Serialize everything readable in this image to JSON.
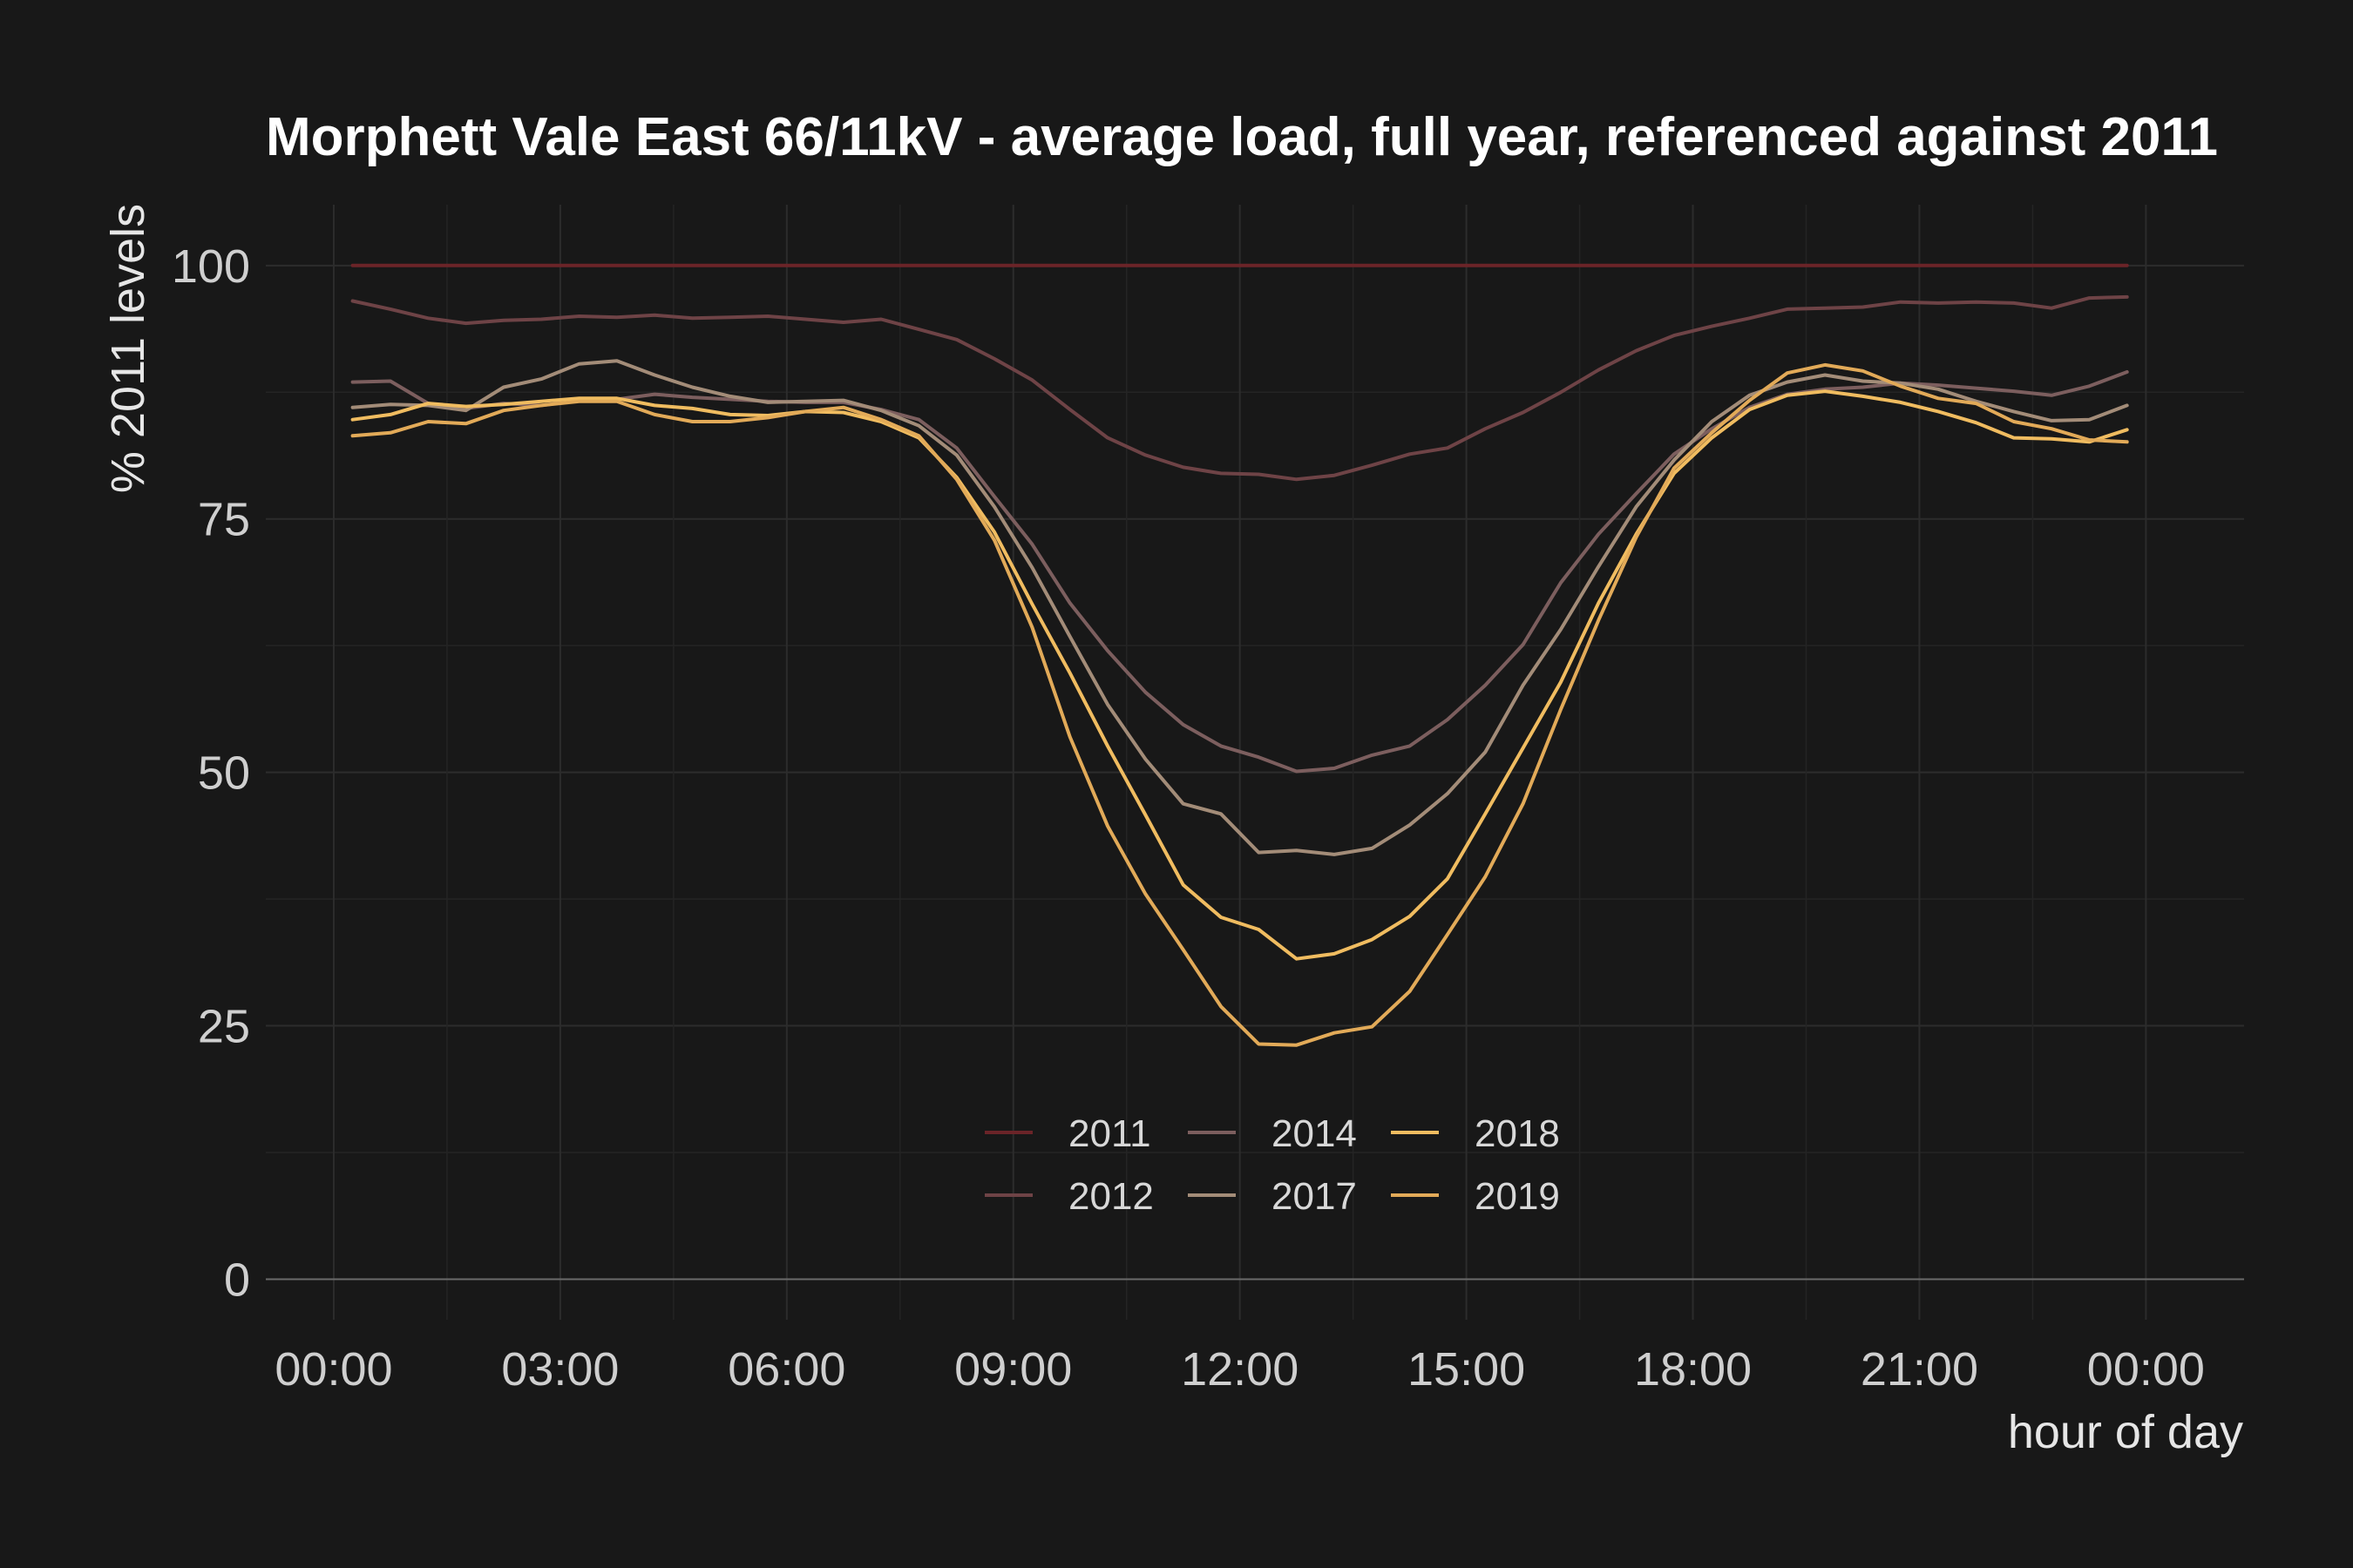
{
  "chart_data": {
    "type": "line",
    "title": "Morphett Vale East 66/11kV - average load, full year, referenced against 2011",
    "xlabel": "hour of day",
    "ylabel": "% 2011 levels",
    "x_tick_labels": [
      "00:00",
      "03:00",
      "06:00",
      "09:00",
      "12:00",
      "15:00",
      "18:00",
      "21:00",
      "00:00"
    ],
    "x_ticks": [
      0,
      3,
      6,
      9,
      12,
      15,
      18,
      21,
      24
    ],
    "y_ticks": [
      0,
      25,
      50,
      75,
      100
    ],
    "xlim": [
      -0.9,
      25.3
    ],
    "ylim": [
      -4,
      106
    ],
    "grid": true,
    "legend_position": "bottom-center",
    "x": [
      0.25,
      0.75,
      1.25,
      1.75,
      2.25,
      2.75,
      3.25,
      3.75,
      4.25,
      4.75,
      5.25,
      5.75,
      6.25,
      6.75,
      7.25,
      7.75,
      8.25,
      8.75,
      9.25,
      9.75,
      10.25,
      10.75,
      11.25,
      11.75,
      12.25,
      12.75,
      13.25,
      13.75,
      14.25,
      14.75,
      15.25,
      15.75,
      16.25,
      16.75,
      17.25,
      17.75,
      18.25,
      18.75,
      19.25,
      19.75,
      20.25,
      20.75,
      21.25,
      21.75,
      22.25,
      22.75,
      23.25,
      23.75
    ],
    "series": [
      {
        "name": "2011",
        "color": "#6b2428",
        "values": [
          100,
          100,
          100,
          100,
          100,
          100,
          100,
          100,
          100,
          100,
          100,
          100,
          100,
          100,
          100,
          100,
          100,
          100,
          100,
          100,
          100,
          100,
          100,
          100,
          100,
          100,
          100,
          100,
          100,
          100,
          100,
          100,
          100,
          100,
          100,
          100,
          100,
          100,
          100,
          100,
          100,
          100,
          100,
          100,
          100,
          100,
          100,
          100
        ]
      },
      {
        "name": "2012",
        "color": "#6e4346",
        "values": [
          96.5,
          95.7,
          94.8,
          94.3,
          94.6,
          94.7,
          95.0,
          94.9,
          95.1,
          94.8,
          94.9,
          95.0,
          94.7,
          94.4,
          94.7,
          93.7,
          92.7,
          90.8,
          88.7,
          85.8,
          83.0,
          81.3,
          80.1,
          79.5,
          79.4,
          78.9,
          79.3,
          80.3,
          81.4,
          82.0,
          83.9,
          85.5,
          87.5,
          89.7,
          91.6,
          93.1,
          94.0,
          94.8,
          95.7,
          95.8,
          95.9,
          96.4,
          96.3,
          96.4,
          96.3,
          95.8,
          96.8,
          96.9
        ]
      },
      {
        "name": "2014",
        "color": "#7c5e5e",
        "values": [
          88.5,
          88.6,
          86.4,
          85.9,
          86.4,
          86.2,
          86.7,
          86.8,
          87.3,
          87.0,
          86.8,
          86.6,
          86.5,
          86.5,
          85.8,
          84.8,
          82.0,
          77.2,
          72.5,
          66.7,
          62.0,
          57.9,
          54.7,
          52.6,
          51.5,
          50.1,
          50.4,
          51.7,
          52.6,
          55.2,
          58.6,
          62.6,
          68.7,
          73.5,
          77.5,
          81.4,
          83.9,
          86.0,
          87.3,
          87.8,
          88.0,
          88.4,
          88.2,
          87.9,
          87.6,
          87.2,
          88.1,
          89.5
        ]
      },
      {
        "name": "2017",
        "color": "#a38c78",
        "values": [
          86.0,
          86.3,
          86.2,
          85.7,
          88.0,
          88.8,
          90.3,
          90.6,
          89.2,
          88.0,
          87.1,
          86.5,
          86.6,
          86.7,
          85.7,
          84.2,
          81.3,
          76.2,
          70.2,
          63.4,
          56.7,
          51.3,
          46.9,
          45.9,
          42.1,
          42.3,
          41.9,
          42.5,
          44.8,
          47.9,
          52.0,
          58.6,
          64.1,
          70.3,
          76.2,
          80.8,
          84.6,
          87.2,
          88.5,
          89.2,
          88.6,
          88.4,
          87.8,
          86.6,
          85.6,
          84.7,
          84.8,
          86.2
        ]
      },
      {
        "name": "2018",
        "color": "#f0bc60",
        "values": [
          84.8,
          85.3,
          86.4,
          86.1,
          86.3,
          86.6,
          86.9,
          86.9,
          86.2,
          85.9,
          85.3,
          85.2,
          85.6,
          85.5,
          84.6,
          83.0,
          79.1,
          73.7,
          66.6,
          59.8,
          52.6,
          45.8,
          38.9,
          35.7,
          34.5,
          31.6,
          32.1,
          33.5,
          35.8,
          39.5,
          45.9,
          52.4,
          58.9,
          66.7,
          73.5,
          79.5,
          83.0,
          85.8,
          87.2,
          87.6,
          87.1,
          86.5,
          85.6,
          84.5,
          83.0,
          82.9,
          82.6,
          83.8
        ]
      },
      {
        "name": "2019",
        "color": "#e2aa58",
        "values": [
          83.2,
          83.5,
          84.6,
          84.4,
          85.7,
          86.2,
          86.6,
          86.6,
          85.3,
          84.6,
          84.6,
          85.0,
          85.6,
          86.0,
          84.8,
          83.2,
          78.9,
          72.9,
          64.3,
          53.5,
          44.7,
          38.0,
          32.5,
          26.9,
          23.2,
          23.1,
          24.3,
          24.9,
          28.4,
          34.0,
          39.7,
          46.9,
          56.2,
          65.0,
          73.2,
          80.0,
          83.5,
          86.7,
          89.4,
          90.2,
          89.6,
          88.1,
          86.9,
          86.4,
          84.6,
          83.9,
          82.8,
          82.6
        ]
      }
    ]
  }
}
